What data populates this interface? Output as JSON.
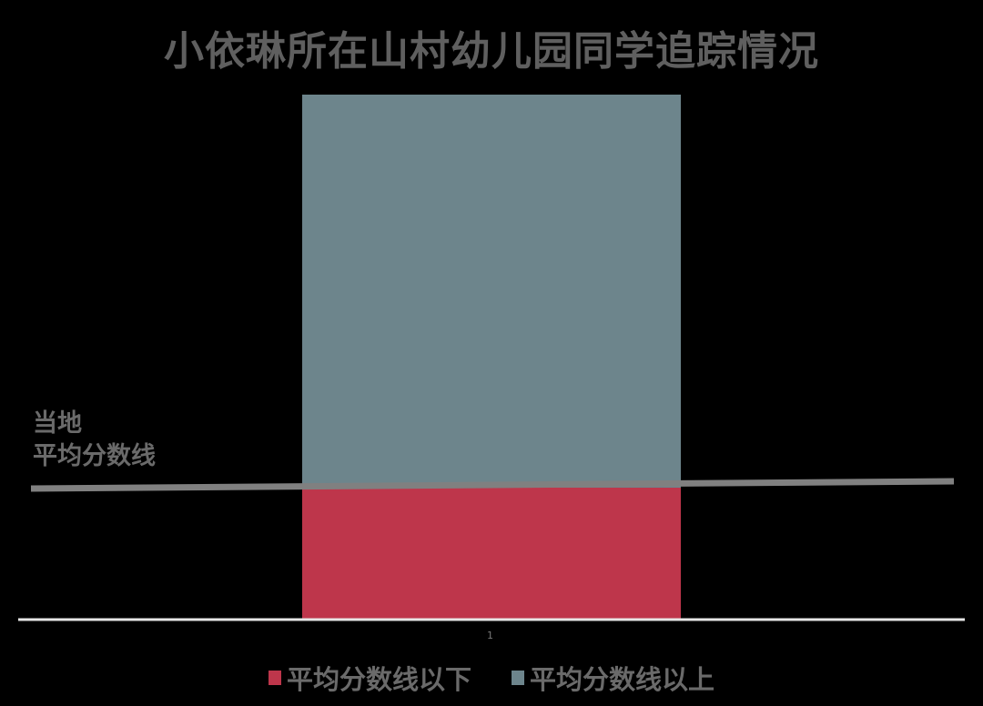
{
  "chart_data": {
    "type": "bar",
    "stacked": true,
    "title": "小依琳所在山村幼儿园同学追踪情况",
    "categories": [
      "1"
    ],
    "series": [
      {
        "name": "平均分数线以下",
        "values": [
          25
        ],
        "color": "#be364b"
      },
      {
        "name": "平均分数线以上",
        "values": [
          75
        ],
        "color": "#6d858c"
      }
    ],
    "ylim": [
      0,
      100
    ],
    "grid": false,
    "legend": "bottom",
    "reference_line": {
      "label_line1": "当地",
      "label_line2": "平均分数线",
      "value": 25,
      "color": "#808080"
    }
  }
}
